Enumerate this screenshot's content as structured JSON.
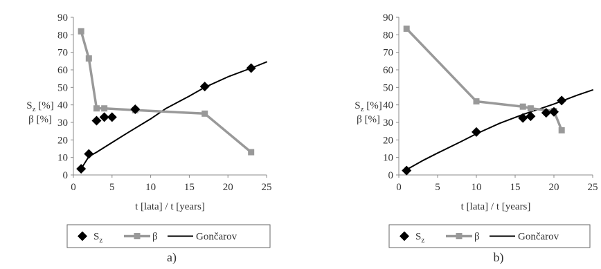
{
  "chart_data": [
    {
      "type": "line",
      "panel_label": "a)",
      "xlabel": "t [lata] / t [years]",
      "ylabel_lines": [
        "Sz [%]",
        "β [%]"
      ],
      "xlim": [
        0,
        25
      ],
      "ylim": [
        0,
        90
      ],
      "xticks": [
        "0",
        "5",
        "10",
        "15",
        "20",
        "25"
      ],
      "yticks": [
        "0",
        "10",
        "20",
        "30",
        "40",
        "50",
        "60",
        "70",
        "80",
        "90"
      ],
      "grid": false,
      "legend_position": "bottom",
      "series": [
        {
          "name": "Sz",
          "style": "markers",
          "marker": "diamond",
          "color": "#000000",
          "x": [
            1,
            2,
            3,
            4,
            5,
            8,
            17,
            23
          ],
          "y": [
            3.5,
            12,
            31,
            33,
            33,
            37.5,
            50.5,
            61
          ]
        },
        {
          "name": "β",
          "style": "line-markers",
          "marker": "square",
          "color": "#999999",
          "x": [
            1,
            2,
            3,
            4,
            8,
            17,
            23
          ],
          "y": [
            82,
            66.5,
            38,
            38,
            37,
            35,
            13
          ]
        },
        {
          "name": "Gončarov",
          "style": "line",
          "color": "#000000",
          "x": [
            1,
            2,
            3,
            5,
            7,
            10,
            12,
            15,
            17,
            20,
            23,
            25
          ],
          "y": [
            3.5,
            10.5,
            13,
            18.5,
            24,
            32,
            38,
            45,
            50,
            56,
            61,
            64.5
          ]
        }
      ]
    },
    {
      "type": "line",
      "panel_label": "b)",
      "xlabel": "t [lata] / t [years]",
      "ylabel_lines": [
        "Sz [%]",
        "β [%]"
      ],
      "xlim": [
        0,
        25
      ],
      "ylim": [
        0,
        90
      ],
      "xticks": [
        "0",
        "5",
        "10",
        "15",
        "20",
        "25"
      ],
      "yticks": [
        "0",
        "10",
        "20",
        "30",
        "40",
        "50",
        "60",
        "70",
        "80",
        "90"
      ],
      "grid": false,
      "legend_position": "bottom",
      "series": [
        {
          "name": "Sz",
          "style": "markers",
          "marker": "diamond",
          "color": "#000000",
          "x": [
            1,
            10,
            16,
            17,
            19,
            20,
            21
          ],
          "y": [
            2.5,
            24.5,
            32.5,
            33.5,
            35.5,
            36,
            42.5
          ]
        },
        {
          "name": "β",
          "style": "line-markers",
          "marker": "square",
          "color": "#999999",
          "x": [
            1,
            10,
            16,
            17,
            20,
            21
          ],
          "y": [
            83.5,
            42,
            39,
            38,
            36.5,
            25.5
          ]
        },
        {
          "name": "Gončarov",
          "style": "line",
          "color": "#000000",
          "x": [
            1,
            3,
            5,
            8,
            10,
            13,
            16,
            20,
            23,
            25
          ],
          "y": [
            3,
            8,
            12.5,
            19,
            23.5,
            29.5,
            34.5,
            40.5,
            45.5,
            48.5
          ]
        }
      ]
    }
  ]
}
